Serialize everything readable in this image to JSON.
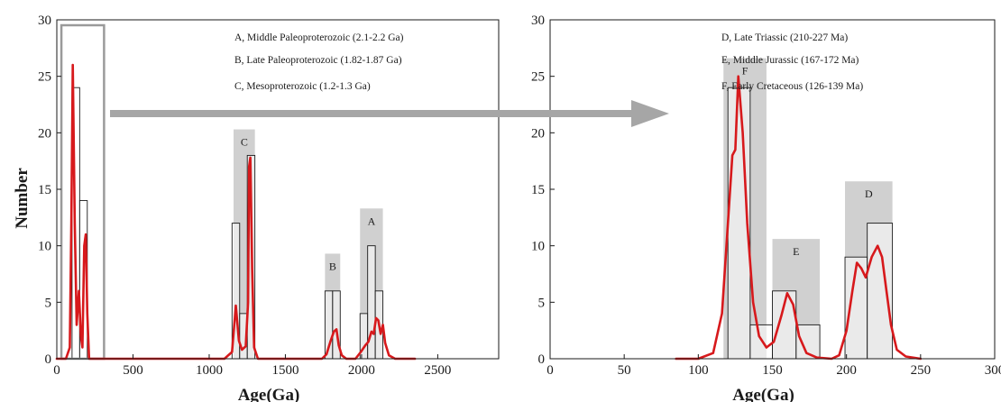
{
  "chart_data": [
    {
      "type": "bar",
      "xlabel": "Age(Ga)",
      "ylabel": "Number",
      "xlim": [
        0,
        2900
      ],
      "ylim": [
        0,
        30
      ],
      "x_ticks": [
        "0",
        "500",
        "1000",
        "1500",
        "2000",
        "2500"
      ],
      "y_ticks": [
        "0",
        "5",
        "10",
        "15",
        "20",
        "25",
        "30"
      ],
      "grid": false,
      "histogram_bins": [
        {
          "x0": 100,
          "x1": 150,
          "count": 24
        },
        {
          "x0": 150,
          "x1": 200,
          "count": 14
        },
        {
          "x0": 1150,
          "x1": 1200,
          "count": 12
        },
        {
          "x0": 1200,
          "x1": 1250,
          "count": 4
        },
        {
          "x0": 1250,
          "x1": 1300,
          "count": 18
        },
        {
          "x0": 1760,
          "x1": 1810,
          "count": 6
        },
        {
          "x0": 1810,
          "x1": 1860,
          "count": 6
        },
        {
          "x0": 1990,
          "x1": 2040,
          "count": 4
        },
        {
          "x0": 2040,
          "x1": 2090,
          "count": 10
        },
        {
          "x0": 2090,
          "x1": 2140,
          "count": 6
        }
      ],
      "group_boxes": [
        {
          "label": "C",
          "x0": 1160,
          "x1": 1300,
          "top": 20.3
        },
        {
          "label": "B",
          "x0": 1760,
          "x1": 1860,
          "top": 9.3
        },
        {
          "label": "A",
          "x0": 1990,
          "x1": 2140,
          "top": 13.3
        }
      ],
      "zoom_box": {
        "x0": 30,
        "x1": 310,
        "top": 30
      },
      "curve": {
        "color": "#d7191c",
        "points": [
          [
            0,
            0
          ],
          [
            60,
            0
          ],
          [
            85,
            1
          ],
          [
            95,
            12
          ],
          [
            105,
            26
          ],
          [
            118,
            12
          ],
          [
            130,
            3
          ],
          [
            145,
            6
          ],
          [
            158,
            2
          ],
          [
            168,
            1
          ],
          [
            180,
            10
          ],
          [
            190,
            11
          ],
          [
            200,
            4
          ],
          [
            212,
            0
          ],
          [
            1100,
            0
          ],
          [
            1150,
            0.6
          ],
          [
            1175,
            4.7
          ],
          [
            1195,
            1.6
          ],
          [
            1215,
            0.8
          ],
          [
            1240,
            1.1
          ],
          [
            1255,
            5
          ],
          [
            1262,
            17
          ],
          [
            1270,
            17.8
          ],
          [
            1282,
            8
          ],
          [
            1295,
            1
          ],
          [
            1320,
            0
          ],
          [
            1740,
            0
          ],
          [
            1770,
            0.4
          ],
          [
            1795,
            1.5
          ],
          [
            1818,
            2.4
          ],
          [
            1835,
            2.6
          ],
          [
            1850,
            1.2
          ],
          [
            1870,
            0.3
          ],
          [
            1900,
            0
          ],
          [
            1960,
            0
          ],
          [
            1995,
            0.6
          ],
          [
            2025,
            1.2
          ],
          [
            2045,
            1.5
          ],
          [
            2065,
            2.4
          ],
          [
            2080,
            2.2
          ],
          [
            2095,
            3.6
          ],
          [
            2110,
            3.4
          ],
          [
            2125,
            2.2
          ],
          [
            2140,
            3
          ],
          [
            2155,
            1.4
          ],
          [
            2180,
            0.3
          ],
          [
            2220,
            0
          ],
          [
            2350,
            0
          ]
        ]
      },
      "legend": [
        "A, Middle Paleoproterozoic (2.1-2.2 Ga)",
        "B, Late Paleoproterozoic (1.82-1.87 Ga)",
        "C, Mesoproterozoic (1.2-1.3 Ga)"
      ],
      "legend_position": "top-right"
    },
    {
      "type": "bar",
      "xlabel": "Age(Ga)",
      "ylabel": "",
      "xlim": [
        0,
        300
      ],
      "ylim": [
        0,
        30
      ],
      "x_ticks": [
        "0",
        "50",
        "100",
        "150",
        "200",
        "250",
        "300"
      ],
      "y_ticks": [
        "0",
        "5",
        "10",
        "15",
        "20",
        "25",
        "30"
      ],
      "grid": false,
      "histogram_bins": [
        {
          "x0": 120,
          "x1": 135,
          "count": 24
        },
        {
          "x0": 135,
          "x1": 150,
          "count": 3
        },
        {
          "x0": 150,
          "x1": 166,
          "count": 6
        },
        {
          "x0": 166,
          "x1": 182,
          "count": 3
        },
        {
          "x0": 199,
          "x1": 214,
          "count": 9
        },
        {
          "x0": 214,
          "x1": 231,
          "count": 12
        }
      ],
      "group_boxes": [
        {
          "label": "F",
          "x0": 117,
          "x1": 146,
          "top": 26.6
        },
        {
          "label": "E",
          "x0": 150,
          "x1": 182,
          "top": 10.6
        },
        {
          "label": "D",
          "x0": 199,
          "x1": 231,
          "top": 15.7
        }
      ],
      "curve": {
        "color": "#d7191c",
        "points": [
          [
            85,
            0
          ],
          [
            100,
            0
          ],
          [
            110,
            0.5
          ],
          [
            116,
            4
          ],
          [
            120,
            12
          ],
          [
            123,
            18
          ],
          [
            125,
            18.5
          ],
          [
            127,
            25
          ],
          [
            130,
            20
          ],
          [
            133,
            12
          ],
          [
            137,
            5
          ],
          [
            141,
            2
          ],
          [
            146,
            1
          ],
          [
            151,
            1.5
          ],
          [
            156,
            3.8
          ],
          [
            160,
            5.8
          ],
          [
            164,
            4.8
          ],
          [
            168,
            2
          ],
          [
            173,
            0.5
          ],
          [
            180,
            0.1
          ],
          [
            190,
            0
          ],
          [
            195,
            0.3
          ],
          [
            200,
            2.5
          ],
          [
            204,
            6
          ],
          [
            207,
            8.5
          ],
          [
            210,
            8
          ],
          [
            213,
            7.2
          ],
          [
            217,
            9
          ],
          [
            221,
            10
          ],
          [
            224,
            9
          ],
          [
            227,
            6
          ],
          [
            230,
            3
          ],
          [
            234,
            0.8
          ],
          [
            240,
            0.2
          ],
          [
            250,
            0
          ]
        ]
      },
      "legend": [
        "D, Late Triassic (210-227 Ma)",
        "E, Middle Jurassic (167-172 Ma)",
        "F, Early Cretaceous (126-139 Ma)"
      ],
      "legend_position": "top-right"
    }
  ],
  "colors": {
    "curve": "#d7191c",
    "group_box": "#d0d0d0",
    "arrow": "#a6a6a6",
    "zoom_box": "#9a9a9a"
  }
}
